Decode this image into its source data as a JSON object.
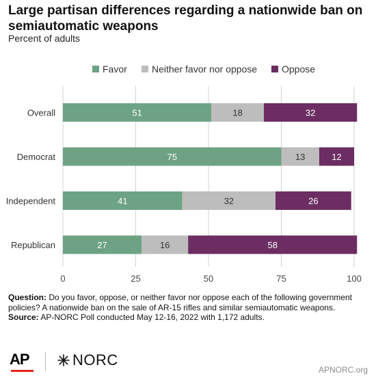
{
  "title": "Large partisan differences regarding a nationwide ban on semiautomatic weapons",
  "subtitle": "Percent of adults",
  "colors": {
    "favor": "#6da384",
    "neither": "#bdbdbd",
    "oppose": "#6b2d62",
    "grid": "#d0d0d0"
  },
  "chart_data": {
    "type": "bar",
    "orientation": "horizontal",
    "stacked": true,
    "categories": [
      "Overall",
      "Democrat",
      "Independent",
      "Republican"
    ],
    "series": [
      {
        "name": "Favor",
        "values": [
          51,
          75,
          41,
          27
        ]
      },
      {
        "name": "Neither favor nor oppose",
        "values": [
          18,
          13,
          32,
          16
        ]
      },
      {
        "name": "Oppose",
        "values": [
          32,
          12,
          26,
          58
        ]
      }
    ],
    "xlim": [
      0,
      100
    ],
    "xticks": [
      0,
      25,
      50,
      75,
      100
    ],
    "legend_position": "top",
    "grid": true
  },
  "notes": {
    "question_label": "Question:",
    "question_text": "Do you favor, oppose, or neither favor nor oppose each of the following government policies? A nationwide ban on the sale of AR-15 rifles and similar semiautomatic weapons.",
    "source_label": "Source:",
    "source_text": "AP-NORC Poll conducted May 12-16, 2022 with 1,172 adults."
  },
  "footer": {
    "ap_logo": "AP",
    "norc_logo": "NORC",
    "site": "APNORC.org"
  }
}
